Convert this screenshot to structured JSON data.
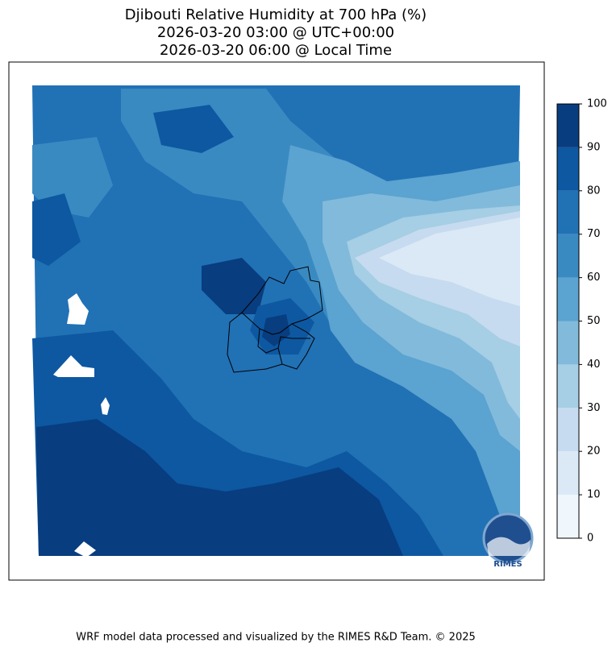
{
  "title": [
    "Djibouti Relative Humidity at 700 hPa (%)",
    "2026-03-20 03:00 @ UTC+00:00",
    "2026-03-20 06:00 @ Local Time"
  ],
  "colorbar": {
    "lim": [
      0,
      100
    ],
    "ticks": [
      0,
      10,
      20,
      30,
      40,
      50,
      60,
      70,
      80,
      90,
      100
    ],
    "colors": [
      "#eff6fc",
      "#dbe9f6",
      "#c6dbef",
      "#a6cee4",
      "#82badb",
      "#5ba3d0",
      "#3a8ac2",
      "#2171b5",
      "#0d58a1",
      "#083d7f"
    ]
  },
  "logo": "RIMES",
  "footer": "WRF model data processed and visualized by the RIMES R&D Team. © 2025"
}
